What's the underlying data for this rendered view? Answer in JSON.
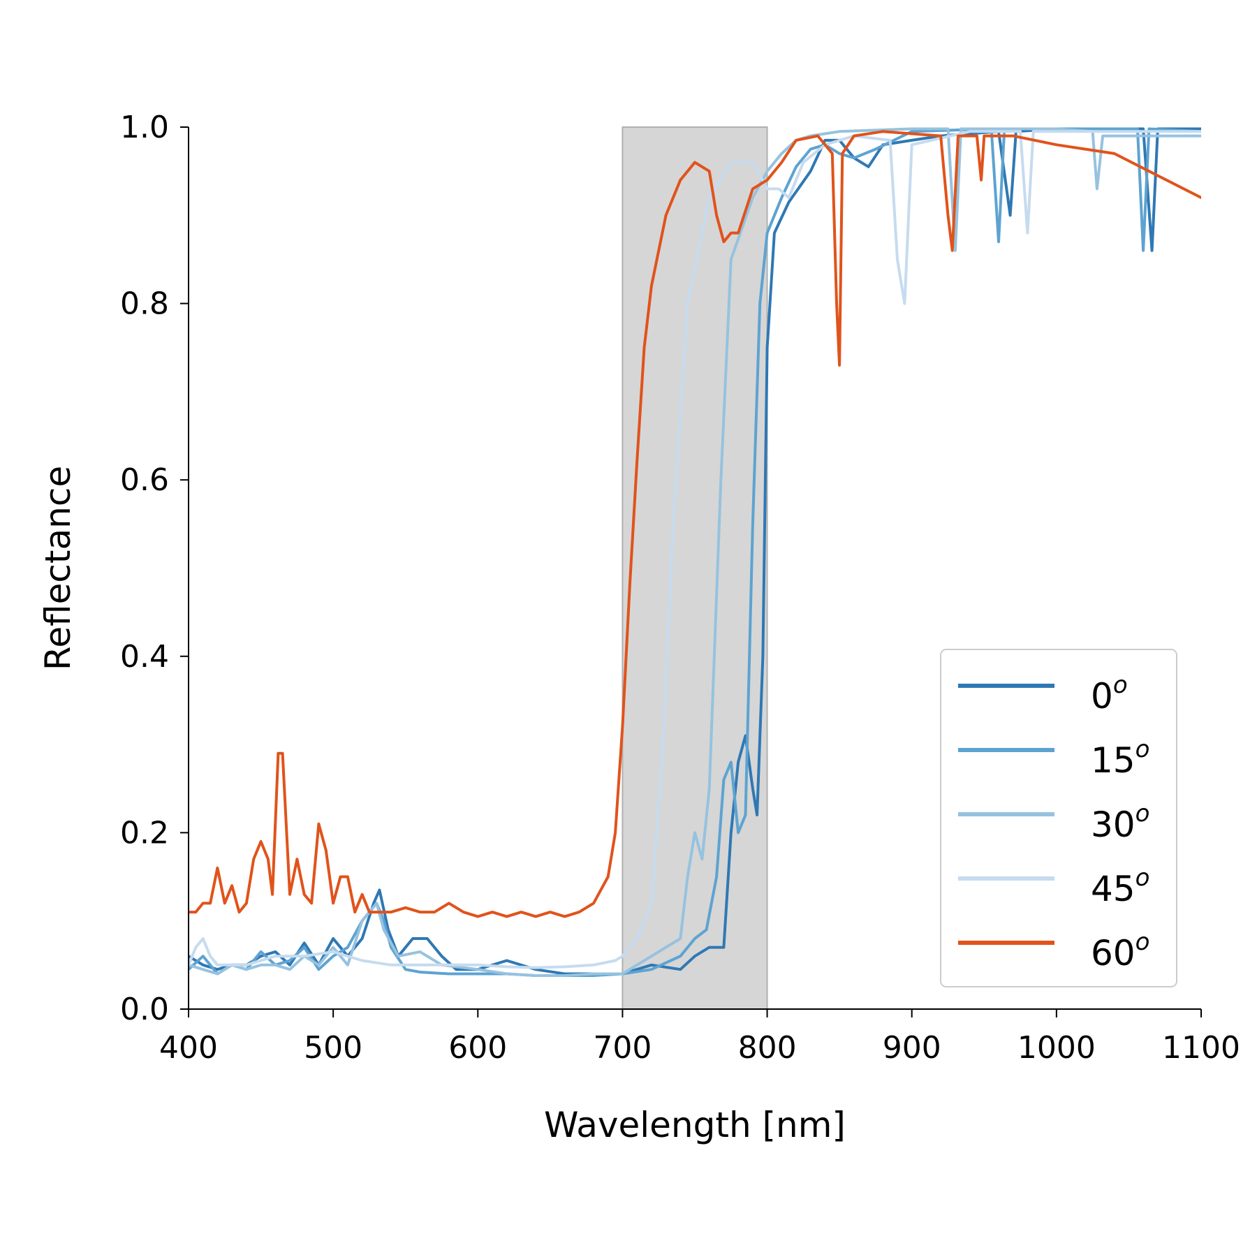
{
  "chart_data": {
    "type": "line",
    "xlabel": "Wavelength [nm]",
    "ylabel": "Reflectance",
    "xlim": [
      400,
      1100
    ],
    "ylim": [
      0,
      1
    ],
    "xticks": [
      "400",
      "500",
      "600",
      "700",
      "800",
      "900",
      "1000",
      "1100"
    ],
    "yticks": [
      "0.0",
      "0.2",
      "0.4",
      "0.6",
      "0.8",
      "1.0"
    ],
    "grid": false,
    "legend_position": "bottom-right",
    "shaded_region": {
      "x_start": 700,
      "x_end": 800,
      "color": "#d6d6d6"
    },
    "series": [
      {
        "name": "0",
        "sup": "o",
        "color": "#2f78b4",
        "points": [
          [
            400,
            0.06
          ],
          [
            410,
            0.05
          ],
          [
            420,
            0.045
          ],
          [
            430,
            0.05
          ],
          [
            440,
            0.05
          ],
          [
            450,
            0.06
          ],
          [
            460,
            0.065
          ],
          [
            470,
            0.05
          ],
          [
            480,
            0.075
          ],
          [
            490,
            0.05
          ],
          [
            500,
            0.08
          ],
          [
            510,
            0.06
          ],
          [
            520,
            0.08
          ],
          [
            528,
            0.12
          ],
          [
            532,
            0.135
          ],
          [
            538,
            0.09
          ],
          [
            545,
            0.06
          ],
          [
            555,
            0.08
          ],
          [
            565,
            0.08
          ],
          [
            575,
            0.06
          ],
          [
            585,
            0.045
          ],
          [
            600,
            0.045
          ],
          [
            620,
            0.055
          ],
          [
            640,
            0.045
          ],
          [
            660,
            0.04
          ],
          [
            680,
            0.04
          ],
          [
            700,
            0.04
          ],
          [
            720,
            0.05
          ],
          [
            740,
            0.045
          ],
          [
            750,
            0.06
          ],
          [
            760,
            0.07
          ],
          [
            770,
            0.07
          ],
          [
            775,
            0.2
          ],
          [
            780,
            0.28
          ],
          [
            785,
            0.31
          ],
          [
            790,
            0.25
          ],
          [
            793,
            0.22
          ],
          [
            797,
            0.4
          ],
          [
            800,
            0.75
          ],
          [
            805,
            0.88
          ],
          [
            815,
            0.915
          ],
          [
            830,
            0.95
          ],
          [
            840,
            0.985
          ],
          [
            850,
            0.985
          ],
          [
            860,
            0.965
          ],
          [
            870,
            0.955
          ],
          [
            880,
            0.98
          ],
          [
            900,
            0.985
          ],
          [
            920,
            0.99
          ],
          [
            960,
            0.995
          ],
          [
            968,
            0.9
          ],
          [
            972,
            0.995
          ],
          [
            1000,
            0.998
          ],
          [
            1060,
            0.998
          ],
          [
            1066,
            0.86
          ],
          [
            1070,
            0.998
          ],
          [
            1100,
            0.998
          ]
        ]
      },
      {
        "name": "15",
        "sup": "o",
        "color": "#5da3d1",
        "points": [
          [
            400,
            0.045
          ],
          [
            410,
            0.06
          ],
          [
            420,
            0.04
          ],
          [
            430,
            0.05
          ],
          [
            440,
            0.045
          ],
          [
            450,
            0.065
          ],
          [
            460,
            0.05
          ],
          [
            470,
            0.055
          ],
          [
            480,
            0.07
          ],
          [
            490,
            0.045
          ],
          [
            500,
            0.06
          ],
          [
            510,
            0.07
          ],
          [
            520,
            0.1
          ],
          [
            530,
            0.12
          ],
          [
            535,
            0.1
          ],
          [
            540,
            0.07
          ],
          [
            550,
            0.045
          ],
          [
            560,
            0.042
          ],
          [
            580,
            0.04
          ],
          [
            600,
            0.04
          ],
          [
            620,
            0.04
          ],
          [
            640,
            0.038
          ],
          [
            660,
            0.038
          ],
          [
            680,
            0.038
          ],
          [
            700,
            0.04
          ],
          [
            720,
            0.045
          ],
          [
            740,
            0.06
          ],
          [
            750,
            0.08
          ],
          [
            758,
            0.09
          ],
          [
            765,
            0.15
          ],
          [
            770,
            0.26
          ],
          [
            775,
            0.28
          ],
          [
            780,
            0.2
          ],
          [
            785,
            0.22
          ],
          [
            790,
            0.55
          ],
          [
            795,
            0.8
          ],
          [
            800,
            0.88
          ],
          [
            810,
            0.92
          ],
          [
            820,
            0.955
          ],
          [
            830,
            0.975
          ],
          [
            840,
            0.98
          ],
          [
            850,
            0.97
          ],
          [
            860,
            0.965
          ],
          [
            875,
            0.975
          ],
          [
            900,
            0.995
          ],
          [
            955,
            0.998
          ],
          [
            960,
            0.87
          ],
          [
            964,
            0.998
          ],
          [
            1000,
            0.998
          ],
          [
            1056,
            0.998
          ],
          [
            1060,
            0.86
          ],
          [
            1064,
            0.998
          ],
          [
            1100,
            0.995
          ]
        ]
      },
      {
        "name": "30",
        "sup": "o",
        "color": "#96c2df",
        "points": [
          [
            400,
            0.05
          ],
          [
            410,
            0.045
          ],
          [
            420,
            0.04
          ],
          [
            430,
            0.05
          ],
          [
            440,
            0.045
          ],
          [
            450,
            0.05
          ],
          [
            460,
            0.05
          ],
          [
            470,
            0.045
          ],
          [
            480,
            0.06
          ],
          [
            490,
            0.05
          ],
          [
            500,
            0.07
          ],
          [
            510,
            0.05
          ],
          [
            520,
            0.1
          ],
          [
            530,
            0.12
          ],
          [
            535,
            0.09
          ],
          [
            545,
            0.06
          ],
          [
            560,
            0.065
          ],
          [
            575,
            0.05
          ],
          [
            600,
            0.045
          ],
          [
            620,
            0.04
          ],
          [
            640,
            0.038
          ],
          [
            660,
            0.038
          ],
          [
            680,
            0.04
          ],
          [
            700,
            0.04
          ],
          [
            720,
            0.06
          ],
          [
            730,
            0.07
          ],
          [
            740,
            0.08
          ],
          [
            745,
            0.15
          ],
          [
            750,
            0.2
          ],
          [
            755,
            0.17
          ],
          [
            760,
            0.25
          ],
          [
            768,
            0.6
          ],
          [
            775,
            0.85
          ],
          [
            790,
            0.92
          ],
          [
            800,
            0.95
          ],
          [
            810,
            0.97
          ],
          [
            820,
            0.985
          ],
          [
            830,
            0.99
          ],
          [
            850,
            0.995
          ],
          [
            900,
            0.998
          ],
          [
            925,
            0.998
          ],
          [
            930,
            0.86
          ],
          [
            934,
            0.998
          ],
          [
            1000,
            0.998
          ],
          [
            1025,
            0.995
          ],
          [
            1028,
            0.93
          ],
          [
            1032,
            0.99
          ],
          [
            1100,
            0.99
          ]
        ]
      },
      {
        "name": "45",
        "sup": "o",
        "color": "#c6dbef",
        "points": [
          [
            400,
            0.05
          ],
          [
            405,
            0.07
          ],
          [
            410,
            0.08
          ],
          [
            415,
            0.06
          ],
          [
            420,
            0.05
          ],
          [
            430,
            0.05
          ],
          [
            440,
            0.05
          ],
          [
            450,
            0.055
          ],
          [
            460,
            0.06
          ],
          [
            480,
            0.06
          ],
          [
            500,
            0.065
          ],
          [
            520,
            0.055
          ],
          [
            540,
            0.05
          ],
          [
            560,
            0.05
          ],
          [
            580,
            0.05
          ],
          [
            600,
            0.05
          ],
          [
            620,
            0.048
          ],
          [
            640,
            0.047
          ],
          [
            660,
            0.048
          ],
          [
            680,
            0.05
          ],
          [
            695,
            0.055
          ],
          [
            700,
            0.06
          ],
          [
            710,
            0.08
          ],
          [
            715,
            0.1
          ],
          [
            720,
            0.12
          ],
          [
            728,
            0.3
          ],
          [
            735,
            0.55
          ],
          [
            745,
            0.8
          ],
          [
            760,
            0.92
          ],
          [
            775,
            0.96
          ],
          [
            790,
            0.96
          ],
          [
            800,
            0.93
          ],
          [
            808,
            0.93
          ],
          [
            815,
            0.92
          ],
          [
            825,
            0.96
          ],
          [
            840,
            0.98
          ],
          [
            860,
            0.99
          ],
          [
            885,
            0.985
          ],
          [
            890,
            0.85
          ],
          [
            895,
            0.8
          ],
          [
            900,
            0.98
          ],
          [
            940,
            0.995
          ],
          [
            975,
            0.995
          ],
          [
            980,
            0.88
          ],
          [
            984,
            0.995
          ],
          [
            1100,
            0.995
          ]
        ]
      },
      {
        "name": "60",
        "sup": "o",
        "color": "#e0531b",
        "points": [
          [
            400,
            0.11
          ],
          [
            405,
            0.11
          ],
          [
            410,
            0.12
          ],
          [
            415,
            0.12
          ],
          [
            420,
            0.16
          ],
          [
            425,
            0.12
          ],
          [
            430,
            0.14
          ],
          [
            435,
            0.11
          ],
          [
            440,
            0.12
          ],
          [
            445,
            0.17
          ],
          [
            450,
            0.19
          ],
          [
            455,
            0.17
          ],
          [
            458,
            0.13
          ],
          [
            462,
            0.29
          ],
          [
            465,
            0.29
          ],
          [
            470,
            0.13
          ],
          [
            475,
            0.17
          ],
          [
            480,
            0.13
          ],
          [
            485,
            0.12
          ],
          [
            490,
            0.21
          ],
          [
            495,
            0.18
          ],
          [
            500,
            0.12
          ],
          [
            505,
            0.15
          ],
          [
            510,
            0.15
          ],
          [
            515,
            0.11
          ],
          [
            520,
            0.13
          ],
          [
            525,
            0.11
          ],
          [
            530,
            0.11
          ],
          [
            540,
            0.11
          ],
          [
            550,
            0.115
          ],
          [
            560,
            0.11
          ],
          [
            570,
            0.11
          ],
          [
            580,
            0.12
          ],
          [
            590,
            0.11
          ],
          [
            600,
            0.105
          ],
          [
            610,
            0.11
          ],
          [
            620,
            0.105
          ],
          [
            630,
            0.11
          ],
          [
            640,
            0.105
          ],
          [
            650,
            0.11
          ],
          [
            660,
            0.105
          ],
          [
            670,
            0.11
          ],
          [
            680,
            0.12
          ],
          [
            690,
            0.15
          ],
          [
            695,
            0.2
          ],
          [
            700,
            0.32
          ],
          [
            705,
            0.48
          ],
          [
            710,
            0.62
          ],
          [
            715,
            0.75
          ],
          [
            720,
            0.82
          ],
          [
            730,
            0.9
          ],
          [
            740,
            0.94
          ],
          [
            750,
            0.96
          ],
          [
            760,
            0.95
          ],
          [
            765,
            0.9
          ],
          [
            770,
            0.87
          ],
          [
            775,
            0.88
          ],
          [
            780,
            0.88
          ],
          [
            790,
            0.93
          ],
          [
            800,
            0.94
          ],
          [
            810,
            0.96
          ],
          [
            820,
            0.985
          ],
          [
            835,
            0.99
          ],
          [
            845,
            0.97
          ],
          [
            848,
            0.8
          ],
          [
            850,
            0.73
          ],
          [
            852,
            0.97
          ],
          [
            860,
            0.99
          ],
          [
            880,
            0.995
          ],
          [
            920,
            0.99
          ],
          [
            925,
            0.9
          ],
          [
            928,
            0.86
          ],
          [
            932,
            0.99
          ],
          [
            945,
            0.99
          ],
          [
            948,
            0.94
          ],
          [
            950,
            0.99
          ],
          [
            970,
            0.99
          ],
          [
            1000,
            0.98
          ],
          [
            1040,
            0.97
          ],
          [
            1070,
            0.945
          ],
          [
            1100,
            0.92
          ]
        ]
      }
    ]
  }
}
